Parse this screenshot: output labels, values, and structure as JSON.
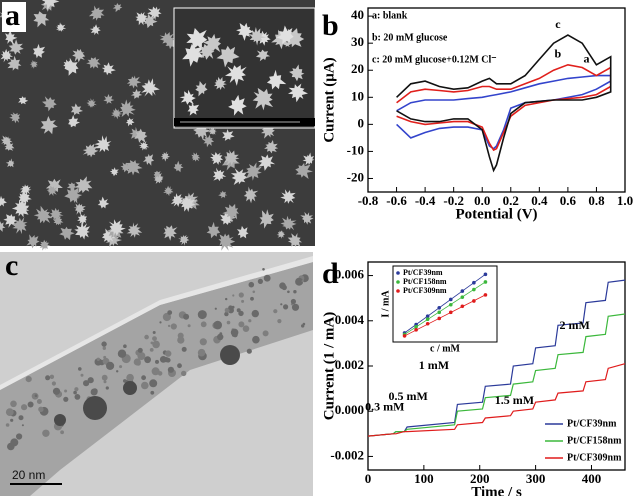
{
  "panels": {
    "labels": [
      "a",
      "b",
      "c",
      "d"
    ],
    "scale_bar": "20 nm"
  },
  "chart_data": [
    {
      "type": "line",
      "xlabel": "Potential (V)",
      "ylabel": "Current (μA)",
      "annotations": [
        "a: blank",
        "b: 20 mM glucose",
        "c: 20 mM glucose+0.12M Cl⁻"
      ],
      "x": [
        -0.6,
        -0.5,
        -0.4,
        -0.3,
        -0.2,
        -0.1,
        0,
        0.05,
        0.1,
        0.2,
        0.3,
        0.4,
        0.5,
        0.6,
        0.7,
        0.8,
        0.9,
        0.9,
        0.8,
        0.7,
        0.5,
        0.3,
        0.2,
        0.15,
        0.1,
        0.08,
        0.05,
        0,
        -0.1,
        -0.2,
        -0.3,
        -0.4,
        -0.5,
        -0.6
      ],
      "series": [
        {
          "name": "a",
          "color": "#3344cc",
          "values": [
            5,
            8,
            9,
            9,
            9,
            9.5,
            10,
            10.5,
            11,
            12,
            13.5,
            15,
            16,
            17,
            17.5,
            18,
            18,
            16,
            13,
            11,
            9,
            8,
            6,
            -2,
            -8,
            -9,
            -8,
            -2,
            -1,
            -1,
            -1.5,
            -3,
            -5,
            0
          ]
        },
        {
          "name": "b",
          "color": "#e0201c",
          "values": [
            8,
            12,
            13,
            12.5,
            12,
            12.5,
            14,
            14,
            13,
            13,
            15,
            17,
            20,
            22,
            21,
            18,
            21,
            14,
            11,
            10,
            9,
            7,
            3,
            -3,
            -9,
            -9.5,
            -7,
            -1,
            1,
            1,
            0.5,
            0,
            1,
            3
          ]
        },
        {
          "name": "c",
          "color": "#111111",
          "values": [
            10,
            15,
            16,
            14,
            13,
            13.5,
            16,
            17,
            15,
            15,
            18,
            24,
            30,
            33,
            30,
            22,
            25,
            12,
            10,
            9,
            9,
            8,
            4,
            -5,
            -15,
            -17,
            -12,
            -2,
            2,
            2,
            1,
            1,
            2,
            5
          ]
        }
      ],
      "xlim": [
        -0.8,
        1.0
      ],
      "xticks": [
        -0.8,
        -0.6,
        -0.4,
        -0.2,
        {
          "value": 0,
          "label": "0.0"
        },
        0.2,
        0.4,
        0.6,
        0.8,
        {
          "value": 1,
          "label": "1.0"
        }
      ],
      "ylim": [
        -25,
        43
      ],
      "yticks": [
        -20,
        -10,
        0,
        10,
        20,
        30,
        40
      ]
    },
    {
      "type": "line",
      "xlabel": "Time / s",
      "ylabel": "Current (1 / mA)",
      "annotations": [
        "0.3 mM",
        "0.5 mM",
        "1 mM",
        "1.5 mM",
        "2 mM"
      ],
      "legend": "lower right",
      "x": [
        0,
        45,
        50,
        65,
        70,
        155,
        160,
        205,
        210,
        255,
        260,
        295,
        300,
        335,
        340,
        385,
        390,
        425,
        430,
        460
      ],
      "series": [
        {
          "name": "Pt/CF39nm",
          "color": "#2b3a9a",
          "values": [
            -0.0011,
            -0.001,
            -0.0009,
            -0.0009,
            -0.0007,
            -0.0005,
            0.0003,
            0.0004,
            0.0011,
            0.0012,
            0.002,
            0.0021,
            0.0028,
            0.0029,
            0.0038,
            0.0039,
            0.0048,
            0.0049,
            0.0057,
            0.0058
          ]
        },
        {
          "name": "Pt/CF158nm",
          "color": "#3cb83c",
          "values": [
            -0.0011,
            -0.001,
            -0.0009,
            -0.0009,
            -0.0008,
            -0.0006,
            0.0,
            0.0001,
            0.0006,
            0.0007,
            0.0012,
            0.0013,
            0.0018,
            0.0019,
            0.0025,
            0.0026,
            0.0033,
            0.0034,
            0.0042,
            0.0043
          ]
        },
        {
          "name": "Pt/CF309nm",
          "color": "#e01c1c",
          "values": [
            -0.0011,
            -0.001,
            -0.001,
            -0.0009,
            -0.0009,
            -0.0008,
            -0.0006,
            -0.0005,
            -0.0003,
            -0.0002,
            0.0,
            0.0001,
            0.0004,
            0.0005,
            0.0008,
            0.0009,
            0.0013,
            0.0014,
            0.0019,
            0.0021
          ]
        }
      ],
      "xlim": [
        0,
        460
      ],
      "xticks": [
        0,
        100,
        200,
        300,
        400
      ],
      "ylim": [
        -0.0026,
        0.0066
      ],
      "yticks": [
        -0.002,
        {
          "value": 0,
          "label": "0.000"
        },
        0.002,
        0.004,
        0.006
      ]
    },
    {
      "type": "scatter",
      "xlabel": "c / mM",
      "ylabel": "I / mA",
      "legend": "upper left",
      "x": [
        1,
        2,
        3,
        4,
        5,
        6,
        7,
        8
      ],
      "series": [
        {
          "name": "Pt/CF39nm",
          "color": "#2b3a9a",
          "values": [
            1.2,
            2.3,
            3.4,
            4.5,
            5.6,
            6.7,
            7.8,
            8.9
          ]
        },
        {
          "name": "Pt/CF158nm",
          "color": "#3cb83c",
          "values": [
            1.0,
            2.0,
            3.0,
            3.9,
            4.9,
            5.9,
            6.9,
            7.9
          ]
        },
        {
          "name": "Pt/CF309nm",
          "color": "#e01c1c",
          "values": [
            0.8,
            1.6,
            2.4,
            3.1,
            3.9,
            4.7,
            5.4,
            6.2
          ]
        }
      ],
      "xlim": [
        0,
        9
      ],
      "ylim": [
        0,
        10
      ]
    }
  ]
}
